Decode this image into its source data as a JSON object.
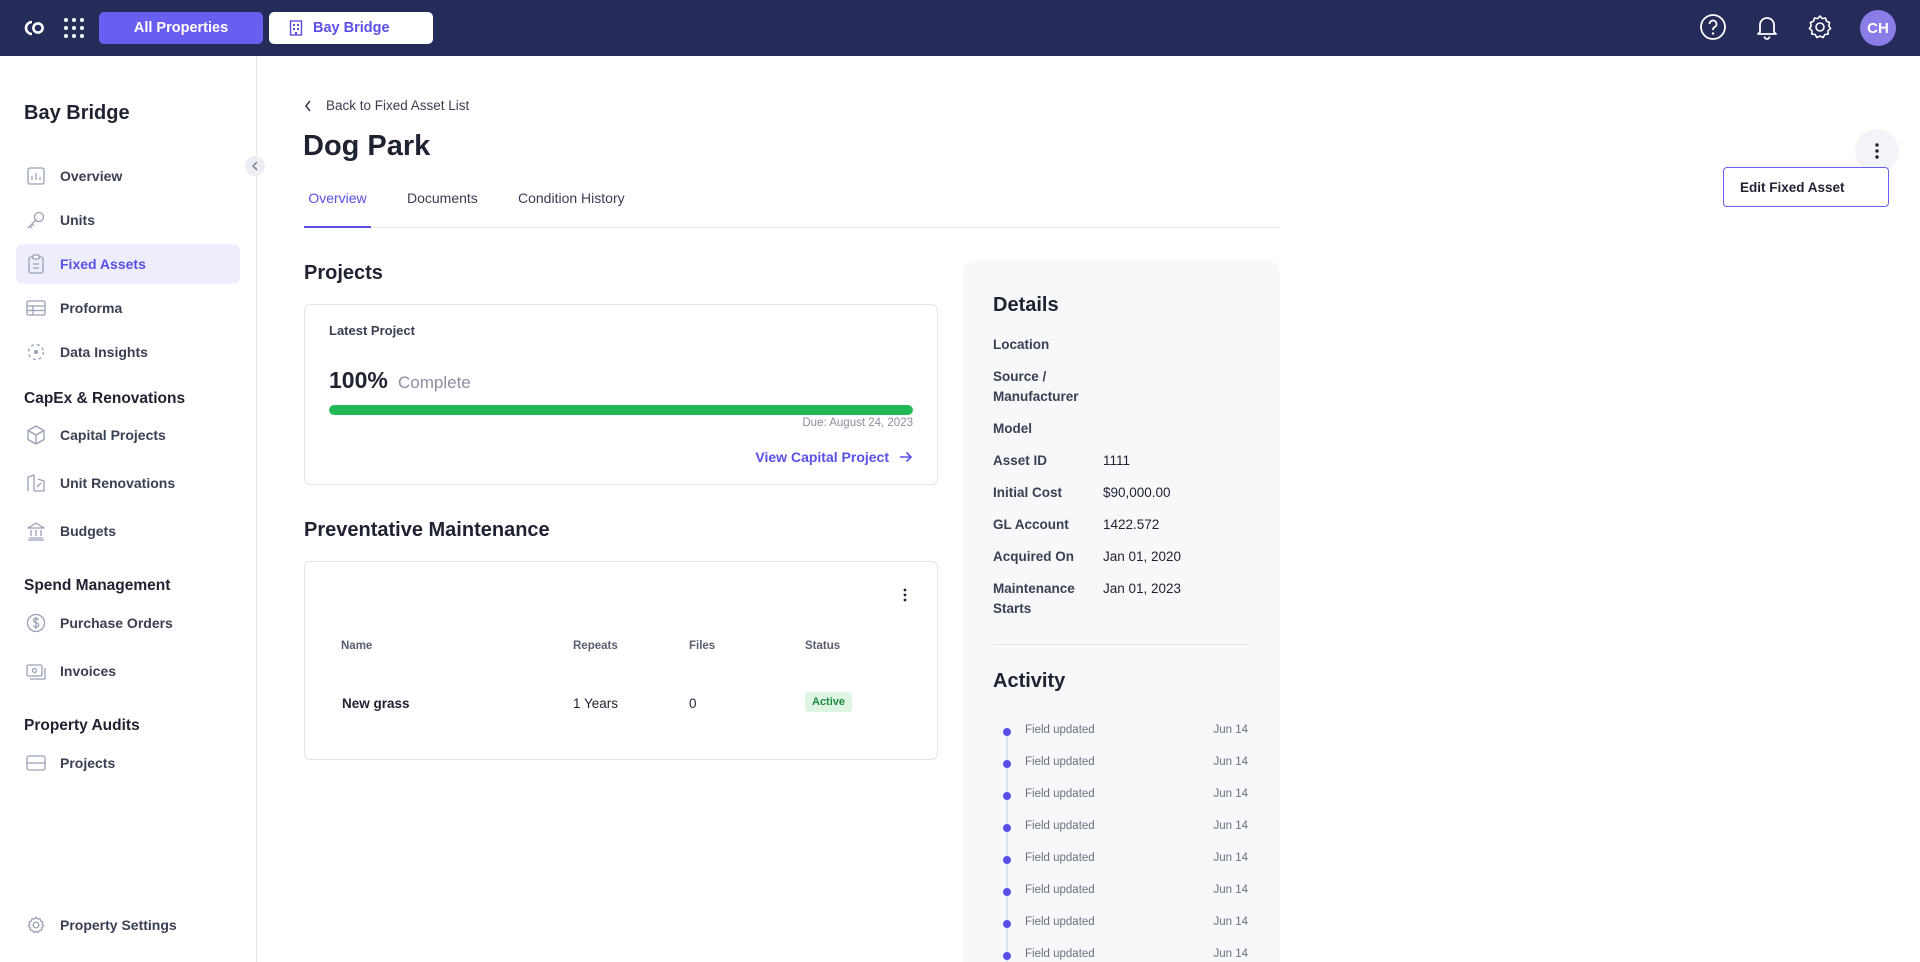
{
  "topbar": {
    "all_properties": "All Properties",
    "property": "Bay Bridge",
    "avatar_initials": "CH"
  },
  "sidebar": {
    "title": "Bay Bridge",
    "items": [
      {
        "label": "Overview",
        "icon": "chart-icon"
      },
      {
        "label": "Units",
        "icon": "key-icon"
      },
      {
        "label": "Fixed Assets",
        "icon": "clipboard-icon",
        "active": true
      },
      {
        "label": "Proforma",
        "icon": "table-icon"
      },
      {
        "label": "Data Insights",
        "icon": "insights-icon"
      }
    ],
    "sections": [
      {
        "title": "CapEx & Renovations",
        "items": [
          {
            "label": "Capital Projects",
            "icon": "cube-icon"
          },
          {
            "label": "Unit Renovations",
            "icon": "renovation-icon"
          },
          {
            "label": "Budgets",
            "icon": "bank-icon"
          }
        ]
      },
      {
        "title": "Spend Management",
        "items": [
          {
            "label": "Purchase Orders",
            "icon": "dollar-icon"
          },
          {
            "label": "Invoices",
            "icon": "invoice-icon"
          }
        ]
      },
      {
        "title": "Property Audits",
        "items": [
          {
            "label": "Projects",
            "icon": "folder-icon"
          }
        ]
      }
    ],
    "settings": "Property Settings"
  },
  "main": {
    "back_link": "Back to Fixed Asset List",
    "title": "Dog Park",
    "tabs": [
      "Overview",
      "Documents",
      "Condition History"
    ],
    "menu_item": "Edit Fixed Asset",
    "projects": {
      "heading": "Projects",
      "latest_label": "Latest Project",
      "percent": "100%",
      "percent_value": 100,
      "complete_label": "Complete",
      "due": "Due: August 24, 2023",
      "view_link": "View Capital Project"
    },
    "maintenance": {
      "heading": "Preventative Maintenance",
      "columns": [
        "Name",
        "Repeats",
        "Files",
        "Status"
      ],
      "rows": [
        {
          "name": "New grass",
          "repeats": "1 Years",
          "files": "0",
          "status": "Active"
        }
      ]
    }
  },
  "details": {
    "heading": "Details",
    "fields": [
      {
        "label": "Location",
        "value": ""
      },
      {
        "label": "Source / Manufacturer",
        "value": ""
      },
      {
        "label": "Model",
        "value": ""
      },
      {
        "label": "Asset ID",
        "value": "1111"
      },
      {
        "label": "Initial Cost",
        "value": "$90,000.00"
      },
      {
        "label": "GL Account",
        "value": "1422.572"
      },
      {
        "label": "Acquired On",
        "value": "Jan 01, 2020"
      },
      {
        "label": "Maintenance Starts",
        "value": "Jan 01, 2023"
      }
    ],
    "activity_heading": "Activity",
    "activity": [
      {
        "text": "Field updated",
        "date": "Jun 14"
      },
      {
        "text": "Field updated",
        "date": "Jun 14"
      },
      {
        "text": "Field updated",
        "date": "Jun 14"
      },
      {
        "text": "Field updated",
        "date": "Jun 14"
      },
      {
        "text": "Field updated",
        "date": "Jun 14"
      },
      {
        "text": "Field updated",
        "date": "Jun 14"
      },
      {
        "text": "Field updated",
        "date": "Jun 14"
      },
      {
        "text": "Field updated",
        "date": "Jun 14"
      }
    ]
  },
  "colors": {
    "topbar": "#262c59",
    "accent": "#5b4fe8",
    "progress": "#22b855"
  }
}
